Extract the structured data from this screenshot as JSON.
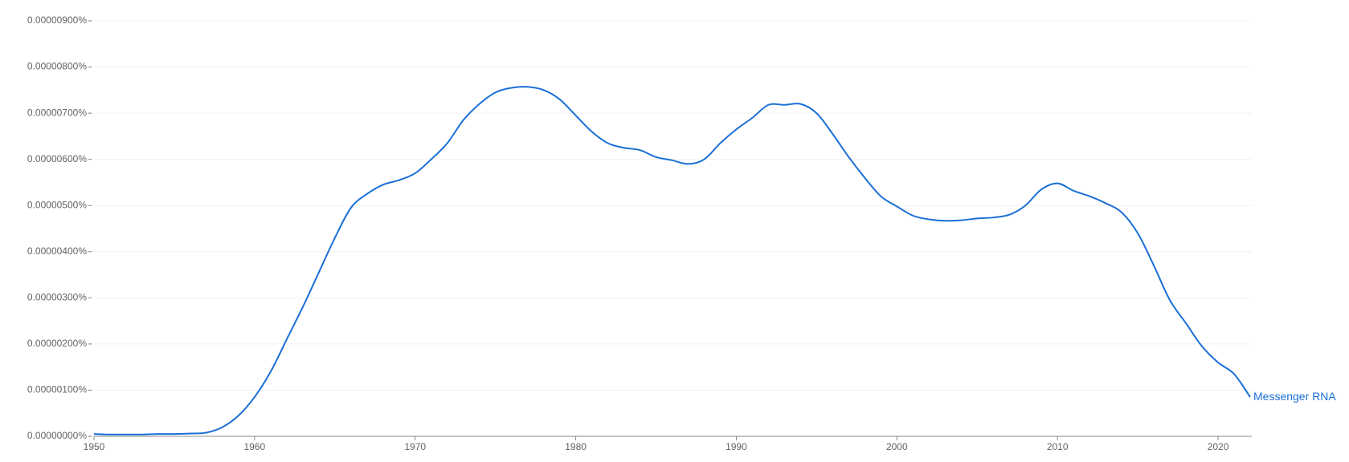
{
  "chart_data": {
    "type": "line",
    "x": [
      1950,
      1951,
      1952,
      1953,
      1954,
      1955,
      1956,
      1957,
      1958,
      1959,
      1960,
      1961,
      1962,
      1963,
      1964,
      1965,
      1966,
      1967,
      1968,
      1969,
      1970,
      1971,
      1972,
      1973,
      1974,
      1975,
      1976,
      1977,
      1978,
      1979,
      1980,
      1981,
      1982,
      1983,
      1984,
      1985,
      1986,
      1987,
      1988,
      1989,
      1990,
      1991,
      1992,
      1993,
      1994,
      1995,
      1996,
      1997,
      1998,
      1999,
      2000,
      2001,
      2002,
      2003,
      2004,
      2005,
      2006,
      2007,
      2008,
      2009,
      2010,
      2011,
      2012,
      2013,
      2014,
      2015,
      2016,
      2017,
      2018,
      2019,
      2020,
      2021,
      2022
    ],
    "series": [
      {
        "name": "Messenger RNA",
        "color": "#1a6fd6",
        "values": [
          5e-08,
          4e-08,
          4e-08,
          4e-08,
          5e-08,
          5e-08,
          6e-08,
          8e-08,
          2e-07,
          4.5e-07,
          8.5e-07,
          1.4e-06,
          2.1e-06,
          2.8e-06,
          3.55e-06,
          4.3e-06,
          4.95e-06,
          5.25e-06,
          5.45e-06,
          5.55e-06,
          5.7e-06,
          6e-06,
          6.35e-06,
          6.85e-06,
          7.2e-06,
          7.45e-06,
          7.55e-06,
          7.57e-06,
          7.5e-06,
          7.3e-06,
          6.95e-06,
          6.6e-06,
          6.35e-06,
          6.25e-06,
          6.2e-06,
          6.05e-06,
          5.98e-06,
          5.9e-06,
          6e-06,
          6.35e-06,
          6.65e-06,
          6.9e-06,
          7.18e-06,
          7.18e-06,
          7.2e-06,
          7e-06,
          6.55e-06,
          6.05e-06,
          5.6e-06,
          5.2e-06,
          4.98e-06,
          4.78e-06,
          4.7e-06,
          4.67e-06,
          4.68e-06,
          4.72e-06,
          4.74e-06,
          4.8e-06,
          5e-06,
          5.35e-06,
          5.48e-06,
          5.32e-06,
          5.2e-06,
          5.05e-06,
          4.85e-06,
          4.4e-06,
          3.7e-06,
          2.95e-06,
          2.45e-06,
          1.95e-06,
          1.6e-06,
          1.35e-06,
          8.5e-07
        ]
      }
    ],
    "xlim": [
      1950,
      2022
    ],
    "xticks": [
      1950,
      1960,
      1970,
      1980,
      1990,
      2000,
      2010,
      2020
    ],
    "ylim": [
      0,
      9e-06
    ],
    "yticks": [
      {
        "value": 0,
        "label": "0.00000000%"
      },
      {
        "value": 1e-06,
        "label": "0.00000100%"
      },
      {
        "value": 2e-06,
        "label": "0.00000200%"
      },
      {
        "value": 3e-06,
        "label": "0.00000300%"
      },
      {
        "value": 4e-06,
        "label": "0.00000400%"
      },
      {
        "value": 5e-06,
        "label": "0.00000500%"
      },
      {
        "value": 6e-06,
        "label": "0.00000600%"
      },
      {
        "value": 7e-06,
        "label": "0.00000700%"
      },
      {
        "value": 8e-06,
        "label": "0.00000800%"
      },
      {
        "value": 9e-06,
        "label": "0.00000900%"
      }
    ],
    "grid": true
  }
}
